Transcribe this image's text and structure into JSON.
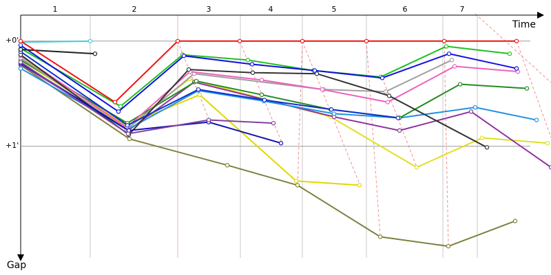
{
  "chart_data": {
    "type": "line",
    "x_label": "Time",
    "y_label": "Gap",
    "xlim": [
      0,
      77
    ],
    "ylim": [
      -0.26,
      2.06
    ],
    "y_inverted": true,
    "grid": true,
    "xticks": [
      {
        "value": 5,
        "label": "1"
      },
      {
        "value": 16.5,
        "label": "2"
      },
      {
        "value": 27.3,
        "label": "3"
      },
      {
        "value": 36.3,
        "label": "4"
      },
      {
        "value": 45.5,
        "label": "5"
      },
      {
        "value": 55.8,
        "label": "6"
      },
      {
        "value": 64.1,
        "label": "7"
      }
    ],
    "yticks": [
      {
        "value": 0,
        "label": "+0'"
      },
      {
        "value": 1,
        "label": "+1'"
      }
    ],
    "series": [
      {
        "color": "#808040",
        "x": [
          0,
          15.8,
          30,
          40.2,
          52.2,
          62.1,
          71.8
        ],
        "values": [
          0.23,
          0.93,
          1.18,
          1.37,
          1.86,
          1.95,
          1.71
        ]
      },
      {
        "color": "#e0d800",
        "x": [
          0,
          15.3,
          26,
          40,
          49.2
        ],
        "values": [
          0.16,
          0.8,
          0.51,
          1.33,
          1.37
        ]
      },
      {
        "color": "#e0e020",
        "x": [
          0,
          15.3,
          24.5,
          45,
          57.5,
          67,
          76.5
        ],
        "values": [
          0.18,
          0.82,
          0.36,
          0.72,
          1.2,
          0.92,
          0.97
        ]
      },
      {
        "color": "#9030a0",
        "x": [
          0,
          15.6,
          25.2,
          45.5,
          55,
          65.4,
          77
        ],
        "values": [
          0.22,
          0.85,
          0.39,
          0.72,
          0.85,
          0.67,
          1.2
        ]
      },
      {
        "color": "#2090e0",
        "x": [
          0,
          15.5,
          25.8,
          35.3,
          45.5,
          55,
          66,
          74.9
        ],
        "values": [
          0.26,
          0.84,
          0.47,
          0.57,
          0.69,
          0.73,
          0.63,
          0.75
        ]
      },
      {
        "color": "#228b22",
        "x": [
          0,
          15.5,
          25.5,
          35,
          45,
          55,
          63.8,
          73.5
        ],
        "values": [
          0.18,
          0.78,
          0.38,
          0.51,
          0.65,
          0.73,
          0.41,
          0.45
        ]
      },
      {
        "color": "#a0a0a0",
        "x": [
          0,
          15.4,
          25.2,
          44,
          53,
          62.6
        ],
        "values": [
          0.16,
          0.84,
          0.31,
          0.46,
          0.48,
          0.18
        ]
      },
      {
        "color": "#ee60c0",
        "x": [
          0,
          15.4,
          24.6,
          35,
          43.8,
          53.3,
          63,
          72.2
        ],
        "values": [
          0.14,
          0.82,
          0.29,
          0.37,
          0.46,
          0.58,
          0.24,
          0.29
        ]
      },
      {
        "color": "#333333",
        "x": [
          0,
          15.7,
          24.4,
          33.7,
          43,
          53.5,
          67.7
        ],
        "values": [
          0.13,
          0.89,
          0.27,
          0.3,
          0.31,
          0.52,
          1.01
        ]
      },
      {
        "color": "#1010b0",
        "x": [
          0,
          15.7,
          27.3,
          37.8
        ],
        "values": [
          0.21,
          0.85,
          0.77,
          0.97
        ]
      },
      {
        "color": "#8040a0",
        "x": [
          0,
          15.6,
          27.3,
          36.7
        ],
        "values": [
          0.2,
          0.88,
          0.75,
          0.78
        ]
      },
      {
        "color": "#1030d0",
        "x": [
          0,
          15.5,
          25.8,
          35.4,
          45.1,
          54.8
        ],
        "values": [
          0.1,
          0.8,
          0.46,
          0.56,
          0.65,
          0.73
        ]
      },
      {
        "color": "#20c020",
        "x": [
          0,
          14.5,
          23.5,
          33,
          42.5,
          52.3,
          61.8,
          71
        ],
        "values": [
          0.07,
          0.62,
          0.13,
          0.18,
          0.28,
          0.34,
          0.05,
          0.12
        ]
      },
      {
        "color": "#1010e0",
        "x": [
          0,
          14.2,
          23.7,
          33.6,
          42.7,
          52.5,
          62.2,
          72
        ],
        "values": [
          0.04,
          0.67,
          0.14,
          0.22,
          0.28,
          0.35,
          0.12,
          0.26
        ]
      },
      {
        "color": "#222222",
        "x": [
          0,
          10.8
        ],
        "values": [
          0.08,
          0.12
        ]
      },
      {
        "color": "#40d0e0",
        "x": [
          0,
          10.1
        ],
        "values": [
          0.01,
          0
        ]
      },
      {
        "color": "#ee1111",
        "x": [
          0,
          13.7,
          22.8,
          31.8,
          40.9,
          50.2,
          61.5,
          72
        ],
        "values": [
          0,
          0.58,
          0,
          0,
          0,
          0,
          0,
          0
        ]
      }
    ]
  }
}
